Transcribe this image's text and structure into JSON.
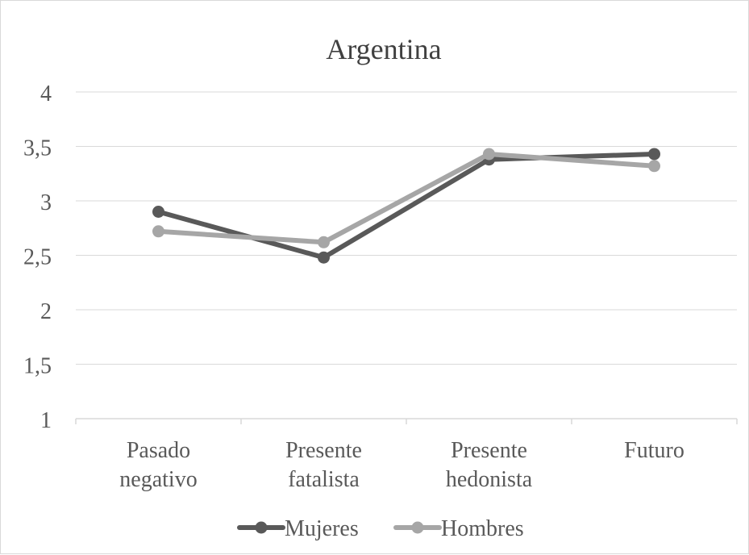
{
  "chart_data": {
    "type": "line",
    "title": "Argentina",
    "xlabel": "",
    "ylabel": "",
    "ylim": [
      1,
      4
    ],
    "yticks": [
      "1",
      "1,5",
      "2",
      "2,5",
      "3",
      "3,5",
      "4"
    ],
    "categories": [
      [
        "Pasado",
        "negativo"
      ],
      [
        "Presente",
        "fatalista"
      ],
      [
        "Presente",
        "hedonista"
      ],
      [
        "Futuro"
      ]
    ],
    "series": [
      {
        "name": "Mujeres",
        "values": [
          2.9,
          2.48,
          3.38,
          3.43
        ],
        "color": "#595959"
      },
      {
        "name": "Hombres",
        "values": [
          2.72,
          2.62,
          3.43,
          3.32
        ],
        "color": "#a6a6a6"
      }
    ],
    "grid": true,
    "legend_position": "bottom"
  }
}
